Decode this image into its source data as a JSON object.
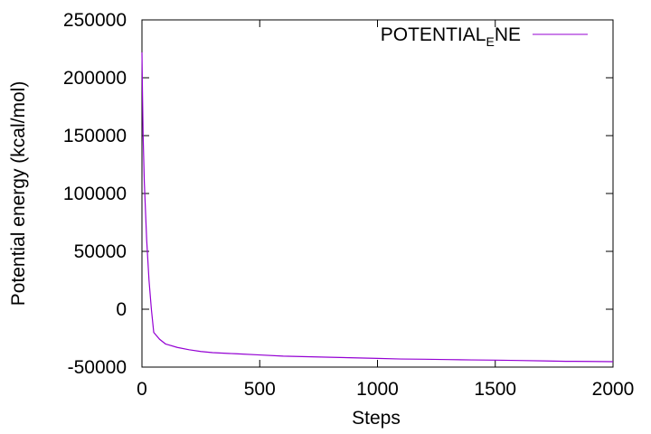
{
  "chart_data": {
    "type": "line",
    "title": "",
    "xlabel": "Steps",
    "ylabel": "Potential energy (kcal/mol)",
    "xlim": [
      0,
      2000
    ],
    "ylim": [
      -50000,
      250000
    ],
    "x_ticks": [
      0,
      500,
      1000,
      1500,
      2000
    ],
    "y_ticks": [
      -50000,
      0,
      50000,
      100000,
      150000,
      200000,
      250000
    ],
    "grid": false,
    "legend_position": "top-right",
    "legend": {
      "main": "POTENTIAL",
      "subscript": "E",
      "rest": "NE"
    },
    "series": [
      {
        "name": "POTENTIAL_ENE",
        "color": "#9400d3",
        "x": [
          0,
          2,
          5,
          10,
          20,
          30,
          40,
          50,
          75,
          100,
          150,
          200,
          250,
          300,
          400,
          500,
          600,
          700,
          800,
          900,
          1000,
          1100,
          1200,
          1300,
          1400,
          1500,
          1600,
          1700,
          1800,
          1900,
          2000
        ],
        "y": [
          222000,
          190000,
          150000,
          110000,
          60000,
          25000,
          0,
          -20000,
          -26000,
          -30000,
          -33000,
          -35000,
          -36500,
          -37500,
          -38500,
          -39500,
          -40500,
          -41000,
          -41500,
          -42000,
          -42500,
          -43000,
          -43200,
          -43500,
          -43800,
          -44000,
          -44300,
          -44600,
          -45000,
          -45100,
          -45300
        ]
      }
    ]
  }
}
